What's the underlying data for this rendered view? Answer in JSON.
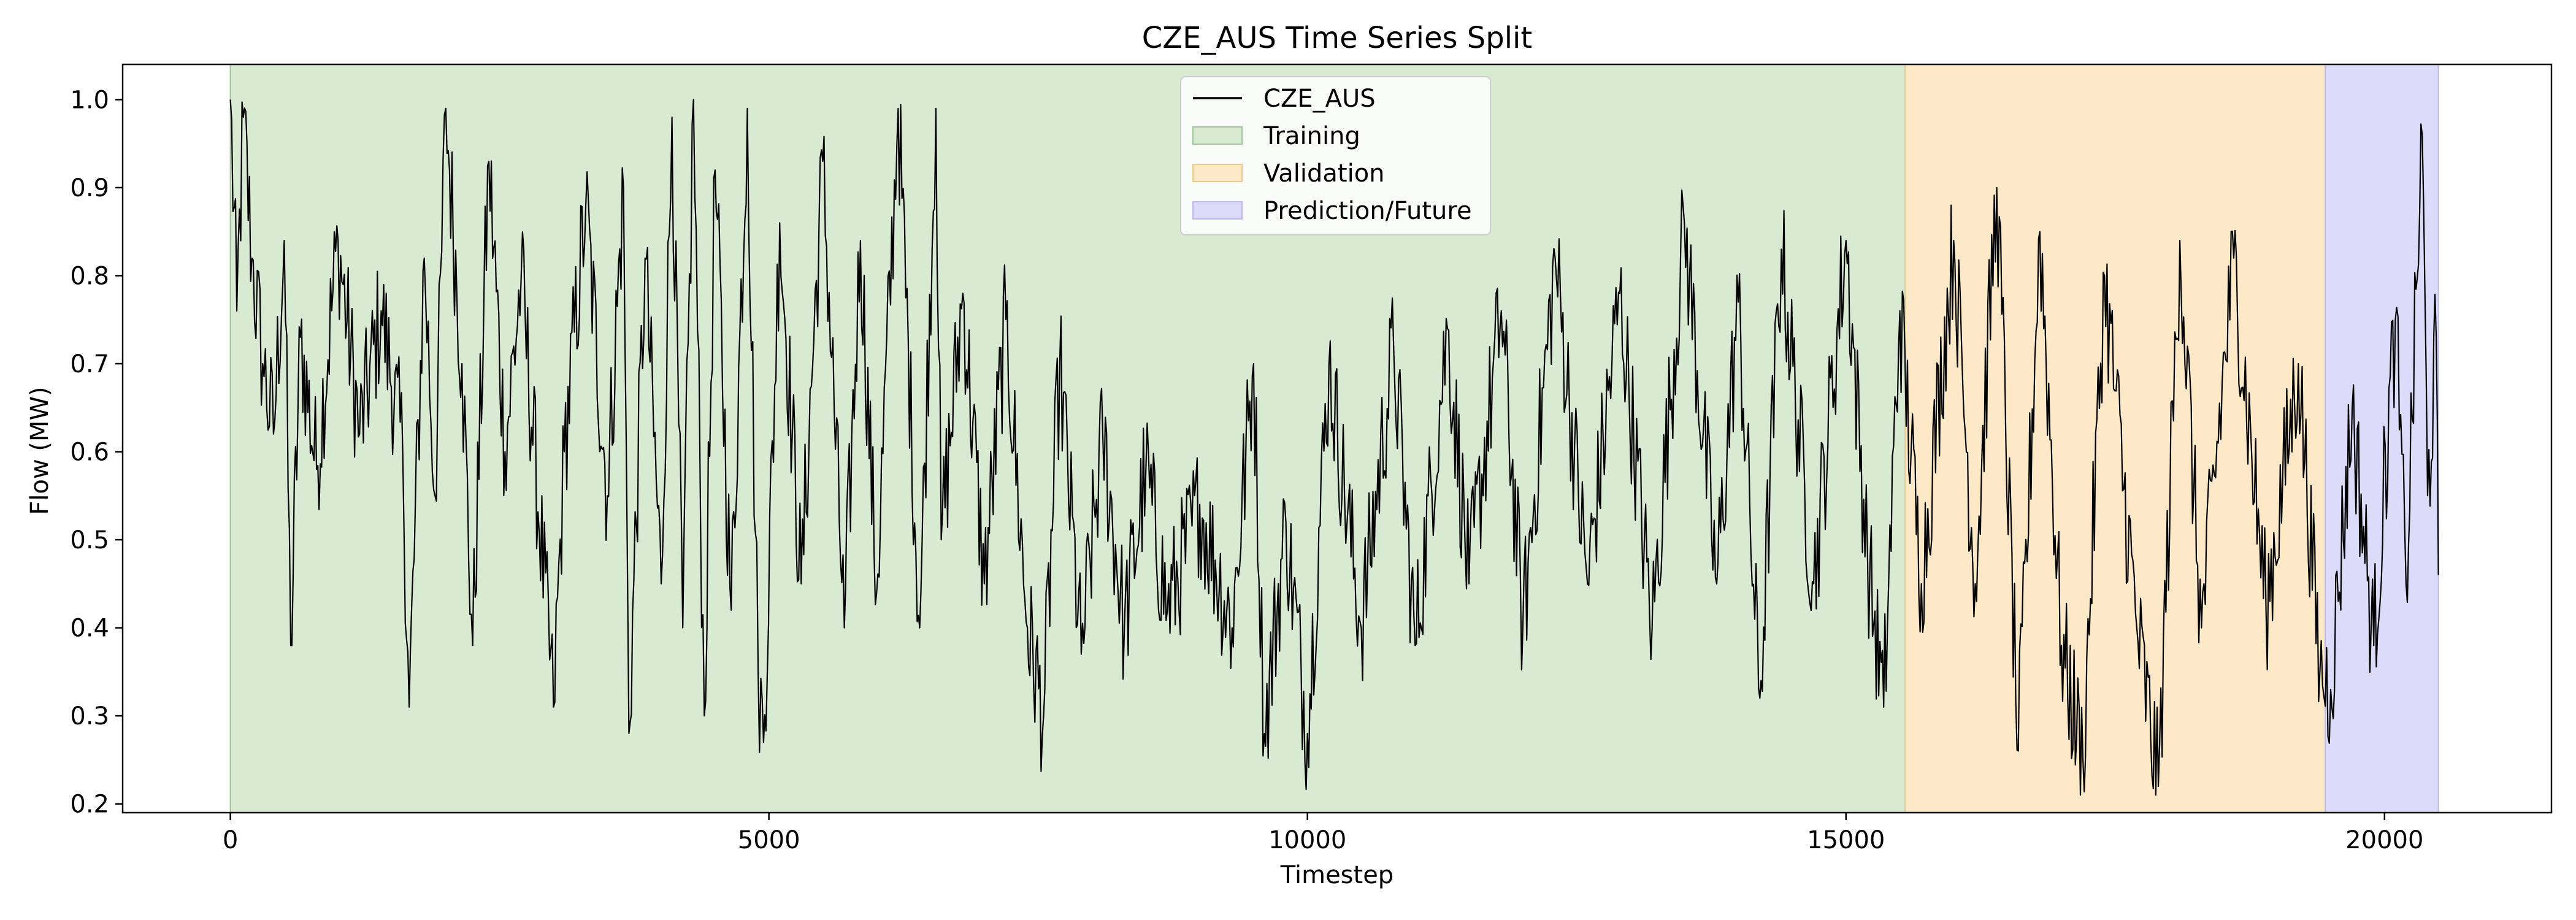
{
  "chart_data": {
    "type": "line",
    "title": "CZE_AUS Time Series Split",
    "xlabel": "Timestep",
    "ylabel": "Flow (MW)",
    "xlim": [
      -1000,
      21550
    ],
    "ylim": [
      0.19,
      1.04
    ],
    "xticks": [
      0,
      5000,
      10000,
      15000,
      20000
    ],
    "xtick_labels": [
      "0",
      "5000",
      "10000",
      "15000",
      "20000"
    ],
    "yticks": [
      0.2,
      0.3,
      0.4,
      0.5,
      0.6,
      0.7,
      0.8,
      0.9,
      1.0
    ],
    "ytick_labels": [
      "0.2",
      "0.3",
      "0.4",
      "0.5",
      "0.6",
      "0.7",
      "0.8",
      "0.9",
      "1.0"
    ],
    "grid": false,
    "legend_position": "top-center",
    "series": [
      {
        "name": "CZE_AUS",
        "color": "#000000",
        "note_sampled": "approximate envelope samples (timestep, flow)",
        "points": [
          [
            0,
            1.0
          ],
          [
            60,
            0.76
          ],
          [
            120,
            0.98
          ],
          [
            200,
            0.82
          ],
          [
            300,
            0.7
          ],
          [
            400,
            0.62
          ],
          [
            500,
            0.84
          ],
          [
            560,
            0.38
          ],
          [
            650,
            0.73
          ],
          [
            800,
            0.58
          ],
          [
            1000,
            0.84
          ],
          [
            1200,
            0.62
          ],
          [
            1400,
            0.76
          ],
          [
            1600,
            0.6
          ],
          [
            1660,
            0.31
          ],
          [
            1800,
            0.82
          ],
          [
            1900,
            0.55
          ],
          [
            2000,
            0.99
          ],
          [
            2150,
            0.7
          ],
          [
            2250,
            0.38
          ],
          [
            2400,
            0.93
          ],
          [
            2550,
            0.6
          ],
          [
            2700,
            0.8
          ],
          [
            3000,
            0.31
          ],
          [
            3100,
            0.6
          ],
          [
            3300,
            0.88
          ],
          [
            3500,
            0.55
          ],
          [
            3650,
            0.9
          ],
          [
            3700,
            0.28
          ],
          [
            3850,
            0.82
          ],
          [
            4000,
            0.45
          ],
          [
            4100,
            0.98
          ],
          [
            4200,
            0.4
          ],
          [
            4300,
            1.0
          ],
          [
            4400,
            0.3
          ],
          [
            4500,
            0.92
          ],
          [
            4650,
            0.42
          ],
          [
            4800,
            0.99
          ],
          [
            4900,
            0.35
          ],
          [
            4950,
            0.27
          ],
          [
            5100,
            0.86
          ],
          [
            5300,
            0.45
          ],
          [
            5500,
            0.93
          ],
          [
            5700,
            0.4
          ],
          [
            5850,
            0.84
          ],
          [
            6000,
            0.44
          ],
          [
            6200,
            0.99
          ],
          [
            6400,
            0.4
          ],
          [
            6550,
            0.99
          ],
          [
            6600,
            0.5
          ],
          [
            6800,
            0.78
          ],
          [
            7000,
            0.45
          ],
          [
            7200,
            0.75
          ],
          [
            7400,
            0.4
          ],
          [
            7550,
            0.3
          ],
          [
            7700,
            0.7
          ],
          [
            7900,
            0.37
          ],
          [
            8100,
            0.62
          ],
          [
            8300,
            0.4
          ],
          [
            8500,
            0.58
          ],
          [
            8700,
            0.42
          ],
          [
            9000,
            0.54
          ],
          [
            9300,
            0.4
          ],
          [
            9500,
            0.7
          ],
          [
            9600,
            0.28
          ],
          [
            9800,
            0.52
          ],
          [
            10000,
            0.28
          ],
          [
            10200,
            0.7
          ],
          [
            10500,
            0.4
          ],
          [
            10800,
            0.72
          ],
          [
            11000,
            0.38
          ],
          [
            11300,
            0.74
          ],
          [
            11500,
            0.45
          ],
          [
            11800,
            0.76
          ],
          [
            12000,
            0.4
          ],
          [
            12300,
            0.82
          ],
          [
            12600,
            0.45
          ],
          [
            12900,
            0.78
          ],
          [
            13200,
            0.4
          ],
          [
            13500,
            0.86
          ],
          [
            13800,
            0.45
          ],
          [
            14000,
            0.77
          ],
          [
            14200,
            0.32
          ],
          [
            14400,
            0.83
          ],
          [
            14700,
            0.45
          ],
          [
            15000,
            0.84
          ],
          [
            15200,
            0.48
          ],
          [
            15350,
            0.31
          ],
          [
            15500,
            0.76
          ],
          [
            15700,
            0.45
          ],
          [
            16000,
            0.84
          ],
          [
            16200,
            0.45
          ],
          [
            16400,
            0.9
          ],
          [
            16600,
            0.26
          ],
          [
            16800,
            0.85
          ],
          [
            17000,
            0.38
          ],
          [
            17200,
            0.25
          ],
          [
            17400,
            0.8
          ],
          [
            17700,
            0.4
          ],
          [
            17900,
            0.22
          ],
          [
            18100,
            0.84
          ],
          [
            18300,
            0.4
          ],
          [
            18600,
            0.82
          ],
          [
            18900,
            0.42
          ],
          [
            19200,
            0.7
          ],
          [
            19400,
            0.35
          ],
          [
            19500,
            0.33
          ],
          [
            19700,
            0.65
          ],
          [
            19900,
            0.38
          ],
          [
            20100,
            0.75
          ],
          [
            20200,
            0.45
          ],
          [
            20350,
            0.96
          ],
          [
            20400,
            0.55
          ],
          [
            20480,
            0.73
          ],
          [
            20500,
            0.46
          ]
        ]
      }
    ],
    "regions": [
      {
        "name": "Training",
        "x_start": 0,
        "x_end": 15550,
        "color": "#d9ead3"
      },
      {
        "name": "Validation",
        "x_start": 15550,
        "x_end": 19450,
        "color": "#fde9c8"
      },
      {
        "name": "Prediction/Future",
        "x_start": 19450,
        "x_end": 20500,
        "color": "#dcdcfa"
      }
    ]
  }
}
